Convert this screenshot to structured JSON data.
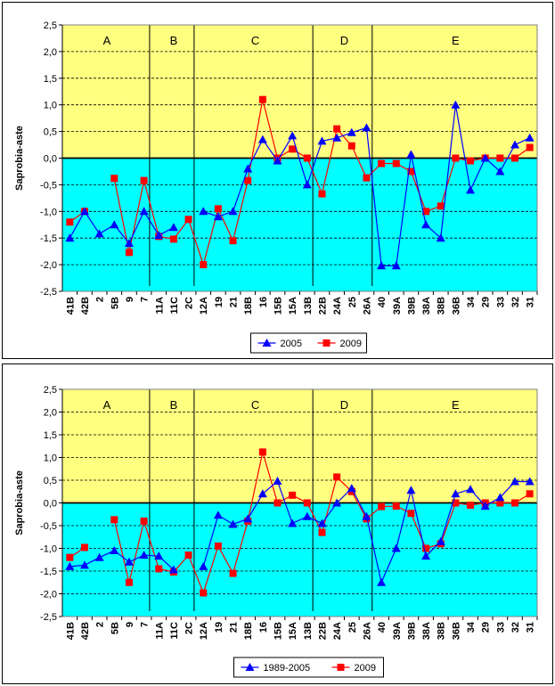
{
  "chart_data": [
    {
      "type": "line",
      "ylabel": "Saprobia-aste",
      "ylim": [
        -2.5,
        2.5
      ],
      "yticks": [
        "2,5",
        "2,0",
        "1,5",
        "1,0",
        "0,5",
        "0,0",
        "-0,5",
        "-1,0",
        "-1,5",
        "-2,0",
        "-2,5"
      ],
      "categories": [
        "41B",
        "42B",
        "2",
        "5B",
        "9",
        "7",
        "11A",
        "11C",
        "2C",
        "12A",
        "19",
        "21",
        "18B",
        "16",
        "15B",
        "15A",
        "13B",
        "22B",
        "24A",
        "25",
        "26A",
        "40",
        "39A",
        "39B",
        "38A",
        "38B",
        "36B",
        "34",
        "29",
        "33",
        "32",
        "31"
      ],
      "sections": [
        {
          "label": "A",
          "start": 0,
          "end": 5
        },
        {
          "label": "B",
          "start": 6,
          "end": 8
        },
        {
          "label": "C",
          "start": 9,
          "end": 16
        },
        {
          "label": "D",
          "start": 17,
          "end": 20
        },
        {
          "label": "E",
          "start": 21,
          "end": 31
        }
      ],
      "grid": true,
      "legend": "bottom-center",
      "series": [
        {
          "name": "2005",
          "color": "#0000ff",
          "marker": "triangle",
          "values": [
            -1.5,
            -1.0,
            -1.42,
            -1.25,
            -1.6,
            -1.0,
            -1.45,
            -1.3,
            null,
            -1.0,
            -1.1,
            -1.0,
            -0.2,
            0.35,
            -0.05,
            0.42,
            -0.5,
            0.32,
            0.38,
            0.48,
            0.57,
            -2.02,
            -2.02,
            0.07,
            -1.25,
            -1.5,
            1.0,
            -0.6,
            0.0,
            -0.25,
            0.25,
            0.38
          ]
        },
        {
          "name": "2009",
          "color": "#ff0000",
          "marker": "square",
          "values": [
            -1.2,
            -1.0,
            null,
            -0.38,
            -1.77,
            -0.42,
            -1.47,
            -1.52,
            -1.15,
            -2.0,
            -0.95,
            -1.55,
            -0.42,
            1.1,
            0.0,
            0.17,
            0.0,
            -0.67,
            0.55,
            0.23,
            -0.37,
            -0.1,
            -0.1,
            -0.25,
            -1.0,
            -0.9,
            0.0,
            -0.05,
            0.0,
            0.0,
            0.0,
            0.2
          ]
        }
      ]
    },
    {
      "type": "line",
      "ylabel": "Saprobia-aste",
      "ylim": [
        -2.5,
        2.5
      ],
      "yticks": [
        "2,5",
        "2,0",
        "1,5",
        "1,0",
        "0,5",
        "0,0",
        "-0,5",
        "-1,0",
        "-1,5",
        "-2,0",
        "-2,5"
      ],
      "categories": [
        "41B",
        "42B",
        "2",
        "5B",
        "9",
        "7",
        "11A",
        "11C",
        "2C",
        "12A",
        "19",
        "21",
        "18B",
        "16",
        "15B",
        "15A",
        "13B",
        "22B",
        "24A",
        "25",
        "26A",
        "40",
        "39A",
        "39B",
        "38A",
        "38B",
        "36B",
        "34",
        "29",
        "33",
        "32",
        "31"
      ],
      "sections": [
        {
          "label": "A",
          "start": 0,
          "end": 5
        },
        {
          "label": "B",
          "start": 6,
          "end": 8
        },
        {
          "label": "C",
          "start": 9,
          "end": 16
        },
        {
          "label": "D",
          "start": 17,
          "end": 20
        },
        {
          "label": "E",
          "start": 21,
          "end": 31
        }
      ],
      "grid": true,
      "legend": "bottom-center",
      "series": [
        {
          "name": "1989-2005",
          "color": "#0000ff",
          "marker": "triangle",
          "values": [
            -1.4,
            -1.37,
            -1.2,
            -1.05,
            -1.3,
            -1.15,
            -1.17,
            -1.47,
            null,
            -1.4,
            -0.27,
            -0.47,
            -0.35,
            0.2,
            0.48,
            -0.45,
            -0.3,
            -0.45,
            0.0,
            0.32,
            -0.3,
            -1.75,
            -1.0,
            0.28,
            -1.17,
            -0.85,
            0.2,
            0.3,
            -0.07,
            0.12,
            0.47,
            0.47
          ]
        },
        {
          "name": "2009",
          "color": "#ff0000",
          "marker": "square",
          "values": [
            -1.2,
            -0.98,
            null,
            -0.37,
            -1.75,
            -0.4,
            -1.45,
            -1.52,
            -1.15,
            -1.98,
            -0.95,
            -1.55,
            -0.4,
            1.12,
            0.0,
            0.17,
            0.0,
            -0.65,
            0.57,
            0.25,
            -0.35,
            -0.08,
            -0.07,
            -0.23,
            -1.0,
            -0.9,
            0.0,
            -0.05,
            0.0,
            0.0,
            0.0,
            0.2
          ]
        }
      ]
    }
  ]
}
